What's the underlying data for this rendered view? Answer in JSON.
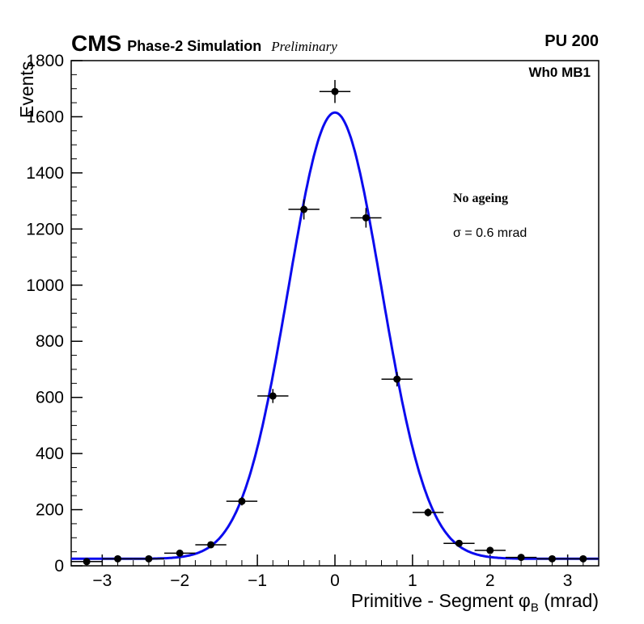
{
  "header": {
    "experiment": "CMS",
    "subtitle": "Phase-2 Simulation",
    "preliminary": "Preliminary",
    "pu": "PU 200"
  },
  "annotations": {
    "chamber": "Wh0 MB1",
    "ageing": "No ageing",
    "sigma": "σ = 0.6 mrad"
  },
  "chart_data": {
    "type": "scatter",
    "title": "",
    "xlabel": "Primitive - Segment φ_B (mrad)",
    "xlabel_main": "Primitive - Segment φ",
    "xlabel_sub": "B",
    "xlabel_unit": " (mrad)",
    "ylabel": "Events",
    "xlim": [
      -3.4,
      3.4
    ],
    "ylim": [
      0,
      1800
    ],
    "grid": false,
    "x_minor_step": 0.2,
    "y_minor_step": 50,
    "xticks": [
      {
        "v": -3,
        "label": "−3"
      },
      {
        "v": -2,
        "label": "−2"
      },
      {
        "v": -1,
        "label": "−1"
      },
      {
        "v": 0,
        "label": "0"
      },
      {
        "v": 1,
        "label": "1"
      },
      {
        "v": 2,
        "label": "2"
      },
      {
        "v": 3,
        "label": "3"
      }
    ],
    "yticks": [
      {
        "v": 0,
        "label": "0"
      },
      {
        "v": 200,
        "label": "200"
      },
      {
        "v": 400,
        "label": "400"
      },
      {
        "v": 600,
        "label": "600"
      },
      {
        "v": 800,
        "label": "800"
      },
      {
        "v": 1000,
        "label": "1000"
      },
      {
        "v": 1200,
        "label": "1200"
      },
      {
        "v": 1400,
        "label": "1400"
      },
      {
        "v": 1600,
        "label": "1600"
      },
      {
        "v": 1800,
        "label": "1800"
      }
    ],
    "marker_color": "#000000",
    "points": [
      {
        "x": -3.2,
        "y": 15,
        "xerr": 0.2,
        "yerr": 4
      },
      {
        "x": -2.8,
        "y": 25,
        "xerr": 0.2,
        "yerr": 5
      },
      {
        "x": -2.4,
        "y": 25,
        "xerr": 0.2,
        "yerr": 5
      },
      {
        "x": -2.0,
        "y": 45,
        "xerr": 0.2,
        "yerr": 7
      },
      {
        "x": -1.6,
        "y": 75,
        "xerr": 0.2,
        "yerr": 9
      },
      {
        "x": -1.2,
        "y": 230,
        "xerr": 0.2,
        "yerr": 15
      },
      {
        "x": -0.8,
        "y": 605,
        "xerr": 0.2,
        "yerr": 25
      },
      {
        "x": -0.4,
        "y": 1270,
        "xerr": 0.2,
        "yerr": 36
      },
      {
        "x": 0.0,
        "y": 1690,
        "xerr": 0.2,
        "yerr": 41
      },
      {
        "x": 0.4,
        "y": 1240,
        "xerr": 0.2,
        "yerr": 35
      },
      {
        "x": 0.8,
        "y": 665,
        "xerr": 0.2,
        "yerr": 26
      },
      {
        "x": 1.2,
        "y": 190,
        "xerr": 0.2,
        "yerr": 14
      },
      {
        "x": 1.6,
        "y": 80,
        "xerr": 0.2,
        "yerr": 9
      },
      {
        "x": 2.0,
        "y": 55,
        "xerr": 0.2,
        "yerr": 7
      },
      {
        "x": 2.4,
        "y": 30,
        "xerr": 0.2,
        "yerr": 5
      },
      {
        "x": 2.8,
        "y": 25,
        "xerr": 0.2,
        "yerr": 5
      },
      {
        "x": 3.2,
        "y": 25,
        "xerr": 0.2,
        "yerr": 5
      }
    ],
    "fit": {
      "type": "gaussian",
      "mean": 0,
      "sigma": 0.6,
      "amplitude": 1590,
      "baseline": 25,
      "color": "#0b0bee",
      "width": 3
    }
  }
}
